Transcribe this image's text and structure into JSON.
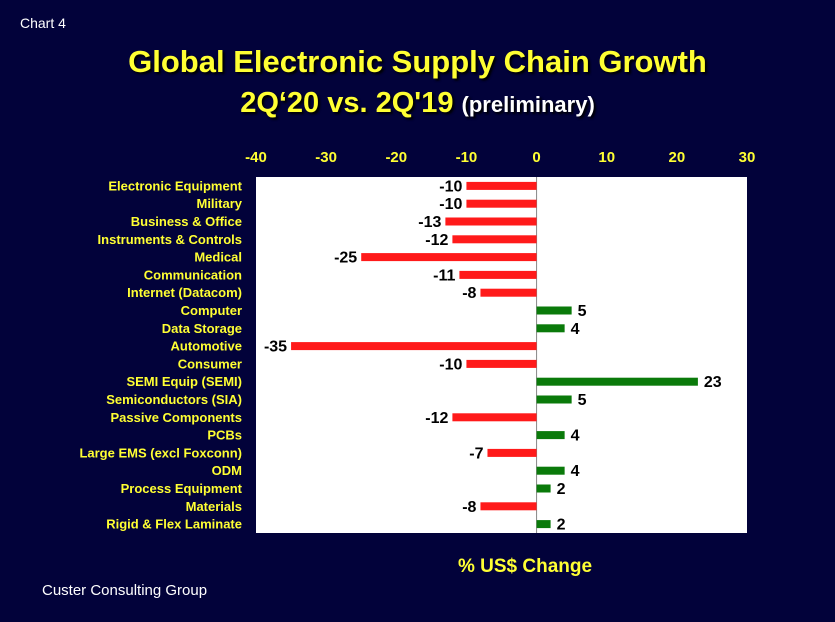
{
  "page": {
    "corner_label": "Chart 4",
    "footer": "Custer Consulting Group"
  },
  "chart_data": {
    "type": "bar",
    "orientation": "horizontal",
    "title": "Global Electronic Supply Chain Growth",
    "subtitle": "2Q‘20 vs. 2Q'19",
    "subtitle_note": "(preliminary)",
    "xlabel": "% US$ Change",
    "xlim": [
      -40,
      30
    ],
    "xticks": [
      -40,
      -30,
      -20,
      -10,
      0,
      10,
      20,
      30
    ],
    "xaxis_position": "top",
    "grid": false,
    "categories": [
      "Electronic Equipment",
      "Military",
      "Business & Office",
      "Instruments & Controls",
      "Medical",
      "Communication",
      "Internet (Datacom)",
      "Computer",
      "Data Storage",
      "Automotive",
      "Consumer",
      "SEMI Equip (SEMI)",
      "Semiconductors (SIA)",
      "Passive Components",
      "PCBs",
      "Large EMS (excl Foxconn)",
      "ODM ",
      "Process Equipment",
      "Materials",
      "Rigid & Flex Laminate"
    ],
    "values": [
      -10,
      -10,
      -13,
      -12,
      -25,
      -11,
      -8,
      5,
      4,
      -35,
      -10,
      23,
      5,
      -12,
      4,
      -7,
      4,
      2,
      -8,
      2
    ],
    "colors": {
      "negative": "#ff1a1a",
      "positive": "#0a7a0a",
      "plot_bg": "#ffffff",
      "text": "#ffff33"
    }
  }
}
